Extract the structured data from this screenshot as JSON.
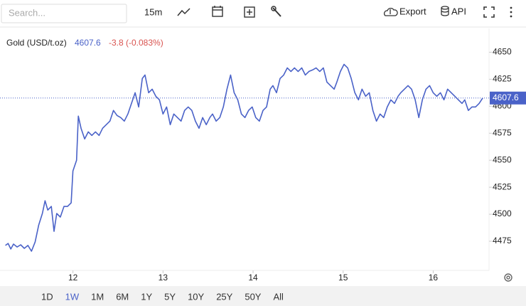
{
  "toolbar": {
    "search_placeholder": "Search...",
    "interval": "15m",
    "export": "Export",
    "api": "API"
  },
  "chart_data": {
    "type": "line",
    "title": "Gold (USD/t.oz)",
    "last_value": 4607.6,
    "change": "-3.8 (-0.083%)",
    "x": [
      11.25,
      11.28,
      11.31,
      11.34,
      11.38,
      11.42,
      11.46,
      11.5,
      11.54,
      11.58,
      11.62,
      11.66,
      11.69,
      11.72,
      11.76,
      11.79,
      11.82,
      11.86,
      11.9,
      11.94,
      11.98,
      12.0,
      12.04,
      12.06,
      12.09,
      12.13,
      12.17,
      12.21,
      12.25,
      12.29,
      12.33,
      12.37,
      12.41,
      12.45,
      12.49,
      12.53,
      12.57,
      12.61,
      12.65,
      12.69,
      12.73,
      12.77,
      12.8,
      12.84,
      12.88,
      12.92,
      12.96,
      13.0,
      13.04,
      13.08,
      13.12,
      13.16,
      13.2,
      13.24,
      13.28,
      13.32,
      13.36,
      13.4,
      13.44,
      13.48,
      13.52,
      13.55,
      13.59,
      13.63,
      13.67,
      13.71,
      13.75,
      13.79,
      13.83,
      13.87,
      13.91,
      13.95,
      13.99,
      14.03,
      14.07,
      14.11,
      14.15,
      14.19,
      14.22,
      14.26,
      14.3,
      14.34,
      14.38,
      14.42,
      14.46,
      14.5,
      14.54,
      14.58,
      14.62,
      14.66,
      14.7,
      14.74,
      14.78,
      14.82,
      14.86,
      14.9,
      14.93,
      14.97,
      15.01,
      15.05,
      15.09,
      15.13,
      15.17,
      15.21,
      15.25,
      15.29,
      15.33,
      15.37,
      15.41,
      15.45,
      15.49,
      15.53,
      15.57,
      15.61,
      15.64,
      15.68,
      15.72,
      15.76,
      15.8,
      15.84,
      15.88,
      15.92,
      15.96,
      16.0,
      16.04,
      16.08,
      16.12,
      16.16,
      16.2,
      16.24,
      16.28,
      16.32,
      16.35,
      16.39,
      16.43,
      16.47,
      16.51,
      16.55
    ],
    "series": [
      {
        "name": "Gold",
        "color": "#4a62c8",
        "values": [
          4471.1,
          4473.0,
          4467.8,
          4472.4,
          4469.7,
          4471.7,
          4468.4,
          4471.1,
          4465.8,
          4474.3,
          4490.1,
          4500.7,
          4512.5,
          4503.9,
          4507.2,
          4484.2,
          4500.7,
          4497.4,
          4507.2,
          4507.2,
          4510.5,
          4540.1,
          4550.0,
          4590.8,
          4579.6,
          4569.7,
          4576.3,
          4573.0,
          4576.3,
          4573.0,
          4579.6,
          4582.9,
          4586.2,
          4596.1,
          4591.4,
          4589.5,
          4586.2,
          4592.8,
          4602.6,
          4612.5,
          4599.3,
          4625.7,
          4628.9,
          4612.5,
          4615.8,
          4609.2,
          4605.9,
          4592.8,
          4599.3,
          4582.9,
          4592.8,
          4589.5,
          4586.2,
          4596.1,
          4599.3,
          4596.1,
          4586.2,
          4579.6,
          4589.5,
          4582.9,
          4589.5,
          4592.8,
          4586.2,
          4589.5,
          4599.3,
          4615.8,
          4628.9,
          4612.5,
          4605.9,
          4592.8,
          4589.5,
          4596.1,
          4599.3,
          4589.5,
          4586.2,
          4596.1,
          4599.3,
          4615.8,
          4619.1,
          4612.5,
          4625.7,
          4628.9,
          4635.5,
          4632.2,
          4635.5,
          4632.2,
          4635.5,
          4628.9,
          4632.2,
          4633.6,
          4635.5,
          4632.2,
          4635.5,
          4622.4,
          4619.1,
          4615.8,
          4622.4,
          4632.2,
          4638.8,
          4635.5,
          4625.7,
          4612.5,
          4605.9,
          4615.8,
          4609.2,
          4612.5,
          4596.1,
          4586.2,
          4592.8,
          4589.5,
          4599.3,
          4605.9,
          4602.6,
          4609.2,
          4612.5,
          4615.8,
          4619.1,
          4615.8,
          4605.9,
          4589.5,
          4605.9,
          4615.8,
          4619.1,
          4612.5,
          4609.2,
          4612.5,
          4605.9,
          4615.8,
          4612.5,
          4609.2,
          4605.9,
          4602.6,
          4605.9,
          4596.1,
          4599.3,
          4599.3,
          4602.6,
          4607.6
        ]
      }
    ],
    "xlim": [
      11.19,
      16.62
    ],
    "xticks": [
      12,
      13,
      14,
      15,
      16
    ],
    "ylim": [
      4448,
      4672
    ],
    "yticks": [
      4475,
      4500,
      4525,
      4550,
      4575,
      4600,
      4625,
      4650
    ]
  },
  "ranges": [
    "1D",
    "1W",
    "1M",
    "6M",
    "1Y",
    "5Y",
    "10Y",
    "25Y",
    "50Y",
    "All"
  ],
  "selected_range": "1W"
}
